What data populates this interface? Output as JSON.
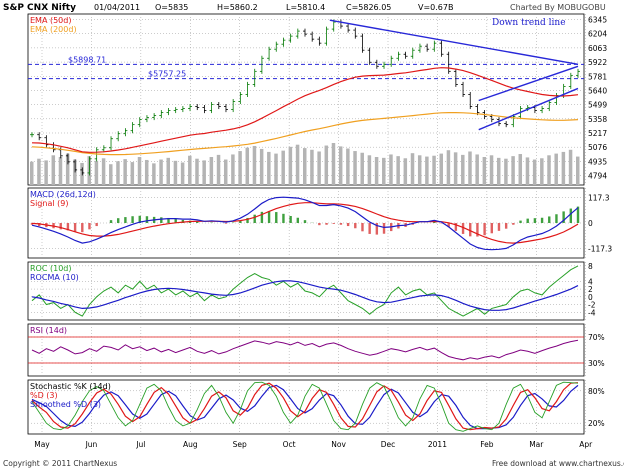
{
  "header": {
    "symbol": "S&P CNX Nifty",
    "date": "01/04/2011",
    "open": "O=5835",
    "high": "H=5860.2",
    "low": "L=5810.4",
    "close": "C=5826.05",
    "volume": "V=0.67B",
    "charted_by": "Charted By MOBUGOBU"
  },
  "footer": {
    "copyright": "Copyright © 2011 ChartNexus",
    "website": "Free download at www.chartnexus.com"
  },
  "colors": {
    "bg": "#ffffff",
    "frame": "#000000",
    "grid": "#999999",
    "candle_up": "#007800",
    "candle_down": "#000000",
    "ema50": "#e01818",
    "ema200": "#f0a020",
    "trend": "#2828d8",
    "volume": "#b4b4b4",
    "macd": "#1c1cc8",
    "signal": "#e01818",
    "macd_hist_up": "#3fa03f",
    "macd_hist_down": "#e06060",
    "roc": "#28a028",
    "rocma": "#1c1cc8",
    "rsi": "#800080",
    "stoch_k": "#28a028",
    "stoch_d": "#e01818",
    "stoch_sd": "#1c1cc8",
    "rsi_ref": "#e01818"
  },
  "chart_data": [
    {
      "type": "candlestick",
      "panel": "price",
      "title": "S&P CNX Nifty",
      "legend": [
        "EMA (50d)",
        "EMA (200d)"
      ],
      "ylim": [
        4700,
        6400
      ],
      "ticks": [
        6345,
        6204,
        6063,
        5922,
        5781,
        5640,
        5499,
        5358,
        5217,
        5076,
        4935,
        4794
      ],
      "h_lines": [
        {
          "label": "$5898.71",
          "value": 5898.71
        },
        {
          "label": "$5757.25",
          "value": 5757.25
        }
      ],
      "annotation": "Down trend line",
      "trend_lines": [
        {
          "name": "Down trend line",
          "from": [
            "Nov",
            6338
          ],
          "to": [
            "Apr",
            5900
          ]
        },
        {
          "name": "upper channel",
          "from": [
            "Feb",
            5540
          ],
          "to": [
            "Apr",
            5880
          ]
        },
        {
          "name": "lower channel",
          "from": [
            "Feb",
            5250
          ],
          "to": [
            "Apr",
            5660
          ]
        }
      ],
      "closes": [
        5200,
        5170,
        5100,
        5050,
        4990,
        4930,
        4850,
        4820,
        4960,
        5050,
        5070,
        5160,
        5210,
        5240,
        5300,
        5350,
        5370,
        5390,
        5420,
        5440,
        5450,
        5460,
        5480,
        5470,
        5440,
        5500,
        5480,
        5450,
        5530,
        5600,
        5700,
        5830,
        5960,
        6050,
        6100,
        6140,
        6180,
        6230,
        6200,
        6150,
        6110,
        6250,
        6320,
        6280,
        6240,
        6180,
        6040,
        5920,
        5880,
        5900,
        5960,
        6000,
        5980,
        6040,
        6080,
        6050,
        6110,
        6000,
        5830,
        5700,
        5600,
        5480,
        5420,
        5380,
        5350,
        5310,
        5300,
        5380,
        5460,
        5470,
        5440,
        5460,
        5520,
        5590,
        5680,
        5790,
        5830
      ],
      "ema50": [
        5120,
        5118,
        5110,
        5100,
        5085,
        5070,
        5050,
        5030,
        5025,
        5026,
        5030,
        5038,
        5048,
        5060,
        5075,
        5090,
        5105,
        5120,
        5135,
        5150,
        5165,
        5180,
        5195,
        5205,
        5212,
        5225,
        5235,
        5245,
        5258,
        5275,
        5298,
        5328,
        5364,
        5402,
        5440,
        5478,
        5515,
        5554,
        5588,
        5616,
        5640,
        5668,
        5700,
        5728,
        5752,
        5772,
        5783,
        5788,
        5790,
        5793,
        5800,
        5808,
        5815,
        5826,
        5838,
        5848,
        5860,
        5866,
        5863,
        5852,
        5837,
        5816,
        5792,
        5766,
        5740,
        5712,
        5685,
        5662,
        5645,
        5630,
        5614,
        5600,
        5591,
        5586,
        5585,
        5590,
        5598
      ],
      "ema200": [
        5080,
        5076,
        5070,
        5063,
        5055,
        5045,
        5034,
        5022,
        5014,
        5008,
        5004,
        5002,
        5002,
        5003,
        5006,
        5010,
        5015,
        5020,
        5026,
        5032,
        5039,
        5046,
        5053,
        5059,
        5064,
        5070,
        5076,
        5081,
        5088,
        5096,
        5105,
        5117,
        5131,
        5147,
        5163,
        5180,
        5197,
        5215,
        5232,
        5247,
        5260,
        5275,
        5291,
        5306,
        5320,
        5332,
        5342,
        5350,
        5356,
        5362,
        5369,
        5376,
        5383,
        5390,
        5398,
        5405,
        5413,
        5418,
        5420,
        5420,
        5418,
        5414,
        5408,
        5401,
        5393,
        5384,
        5375,
        5368,
        5362,
        5357,
        5352,
        5348,
        5345,
        5343,
        5343,
        5346,
        5350
      ],
      "volume": [
        0.55,
        0.62,
        0.58,
        0.7,
        0.66,
        0.74,
        0.6,
        0.52,
        0.68,
        0.57,
        0.63,
        0.49,
        0.56,
        0.61,
        0.54,
        0.66,
        0.59,
        0.51,
        0.6,
        0.64,
        0.57,
        0.53,
        0.69,
        0.62,
        0.58,
        0.66,
        0.71,
        0.6,
        0.72,
        0.8,
        0.88,
        0.92,
        0.85,
        0.78,
        0.74,
        0.81,
        0.9,
        0.95,
        0.87,
        0.83,
        0.79,
        0.93,
        0.99,
        0.91,
        0.86,
        0.8,
        0.76,
        0.7,
        0.66,
        0.64,
        0.72,
        0.68,
        0.63,
        0.75,
        0.7,
        0.67,
        0.69,
        0.74,
        0.82,
        0.77,
        0.71,
        0.79,
        0.72,
        0.66,
        0.7,
        0.64,
        0.62,
        0.68,
        0.73,
        0.65,
        0.6,
        0.63,
        0.7,
        0.74,
        0.78,
        0.83,
        0.67
      ]
    },
    {
      "type": "line",
      "panel": "macd",
      "legend": [
        "MACD (26d,12d)",
        "Signal (9)"
      ],
      "ylim": [
        -160,
        160
      ],
      "ticks": [
        "117.3",
        "0",
        "-117.3"
      ],
      "tick_values": [
        117.3,
        0,
        -117.3
      ],
      "series": [
        {
          "name": "MACD (26d,12d)",
          "values": [
            -10,
            -18,
            -28,
            -38,
            -50,
            -64,
            -80,
            -92,
            -86,
            -74,
            -60,
            -44,
            -30,
            -18,
            -6,
            4,
            10,
            14,
            18,
            20,
            20,
            18,
            18,
            14,
            8,
            10,
            8,
            4,
            10,
            22,
            40,
            64,
            90,
            108,
            116,
            118,
            116,
            114,
            106,
            94,
            80,
            80,
            84,
            78,
            68,
            52,
            28,
            4,
            -12,
            -20,
            -18,
            -12,
            -10,
            -2,
            6,
            6,
            12,
            4,
            -18,
            -44,
            -70,
            -96,
            -112,
            -120,
            -122,
            -120,
            -116,
            -100,
            -78,
            -64,
            -56,
            -48,
            -34,
            -14,
            12,
            42,
            70
          ]
        },
        {
          "name": "Signal (9)",
          "values": [
            -2,
            -4,
            -9,
            -14,
            -21,
            -30,
            -40,
            -50,
            -57,
            -60,
            -60,
            -57,
            -52,
            -45,
            -37,
            -29,
            -21,
            -14,
            -8,
            -3,
            1,
            4,
            7,
            8,
            8,
            8,
            8,
            7,
            8,
            11,
            17,
            26,
            39,
            53,
            66,
            76,
            84,
            90,
            93,
            93,
            90,
            88,
            88,
            86,
            82,
            76,
            66,
            54,
            41,
            29,
            19,
            13,
            8,
            6,
            6,
            6,
            7,
            6,
            1,
            -8,
            -20,
            -35,
            -50,
            -64,
            -75,
            -84,
            -90,
            -92,
            -89,
            -84,
            -78,
            -72,
            -64,
            -54,
            -41,
            -24,
            -5
          ]
        }
      ]
    },
    {
      "type": "line",
      "panel": "roc",
      "legend": [
        "ROC (10d)",
        "ROCMA (10)"
      ],
      "ylim": [
        -6,
        9
      ],
      "ticks": [
        "8",
        "4",
        "2",
        "0",
        "-2",
        "-4"
      ],
      "tick_values": [
        8,
        4,
        2,
        0,
        -2,
        -4
      ],
      "series": [
        {
          "name": "ROC (10d)",
          "values": [
            -1,
            0.5,
            -2,
            -1.5,
            -3,
            -2,
            -4,
            -5,
            -2,
            0,
            1.5,
            2.5,
            1,
            3,
            2,
            4,
            2,
            3,
            1,
            2,
            0.5,
            1.5,
            0,
            1,
            -1,
            0.5,
            -0.5,
            0,
            2,
            3.5,
            5,
            6,
            5,
            4.5,
            3,
            4,
            2.5,
            3.5,
            1.5,
            1,
            0,
            2,
            3,
            1,
            -1,
            -2,
            -3,
            -4.5,
            -3,
            -2,
            1,
            2.5,
            0.5,
            1.5,
            2,
            0.5,
            1,
            -1,
            -3,
            -4,
            -5,
            -4,
            -3,
            -4.5,
            -3,
            -2.5,
            -2,
            0,
            1.5,
            2,
            1,
            0.5,
            2.5,
            4,
            5.5,
            7,
            8
          ]
        },
        {
          "name": "ROCMA (10)",
          "values": [
            0,
            -0.3,
            -0.8,
            -1.2,
            -1.7,
            -2.1,
            -2.6,
            -3.0,
            -2.9,
            -2.6,
            -2.1,
            -1.5,
            -0.9,
            -0.2,
            0.4,
            1.0,
            1.5,
            1.9,
            2.1,
            2.2,
            2.1,
            1.9,
            1.6,
            1.3,
            1.0,
            0.7,
            0.5,
            0.4,
            0.6,
            1.0,
            1.6,
            2.3,
            3.0,
            3.5,
            3.9,
            4.1,
            4.1,
            3.9,
            3.5,
            3.0,
            2.5,
            2.2,
            2.0,
            1.7,
            1.2,
            0.6,
            -0.1,
            -0.8,
            -1.3,
            -1.5,
            -1.4,
            -1.0,
            -0.6,
            -0.2,
            0.2,
            0.4,
            0.5,
            0.3,
            -0.2,
            -0.9,
            -1.7,
            -2.4,
            -2.9,
            -3.3,
            -3.5,
            -3.5,
            -3.3,
            -2.9,
            -2.3,
            -1.7,
            -1.1,
            -0.6,
            0.0,
            0.6,
            1.3,
            2.0,
            2.9
          ]
        }
      ]
    },
    {
      "type": "line",
      "panel": "rsi",
      "legend": [
        "RSI (14d)"
      ],
      "ylim": [
        10,
        90
      ],
      "ticks": [
        "70%",
        "30%"
      ],
      "tick_values": [
        70,
        30
      ],
      "series": [
        {
          "name": "RSI (14d)",
          "values": [
            50,
            45,
            52,
            48,
            55,
            50,
            44,
            46,
            52,
            48,
            56,
            54,
            50,
            58,
            52,
            55,
            49,
            53,
            47,
            51,
            46,
            50,
            54,
            48,
            45,
            49,
            44,
            47,
            52,
            56,
            60,
            64,
            62,
            59,
            63,
            61,
            58,
            62,
            57,
            60,
            55,
            59,
            61,
            57,
            52,
            48,
            45,
            42,
            44,
            48,
            52,
            50,
            47,
            51,
            54,
            50,
            53,
            46,
            40,
            37,
            35,
            38,
            36,
            39,
            41,
            38,
            43,
            46,
            50,
            48,
            45,
            49,
            53,
            56,
            60,
            63,
            65
          ]
        }
      ]
    },
    {
      "type": "line",
      "panel": "stochastic",
      "legend": [
        "Stochastic %K (14d)",
        "%D (3)",
        "Smoothed %D (3)"
      ],
      "ylim": [
        0,
        100
      ],
      "ticks": [
        "80%",
        "20%"
      ],
      "tick_values": [
        80,
        20
      ],
      "series": [
        {
          "name": "Stochastic %K (14d)",
          "values": [
            60,
            40,
            20,
            10,
            8,
            15,
            35,
            60,
            80,
            88,
            80,
            55,
            30,
            15,
            25,
            55,
            85,
            92,
            80,
            50,
            25,
            15,
            20,
            45,
            75,
            90,
            70,
            40,
            20,
            45,
            80,
            95,
            96,
            90,
            70,
            40,
            20,
            35,
            70,
            92,
            85,
            55,
            25,
            10,
            8,
            20,
            55,
            85,
            95,
            88,
            60,
            30,
            15,
            30,
            65,
            90,
            85,
            55,
            20,
            8,
            5,
            10,
            15,
            10,
            8,
            20,
            55,
            85,
            92,
            70,
            40,
            30,
            60,
            90,
            96,
            95,
            94
          ]
        },
        {
          "name": "%D (3)",
          "values": [
            62,
            50,
            40,
            23,
            13,
            11,
            19,
            37,
            58,
            76,
            83,
            74,
            55,
            33,
            23,
            32,
            55,
            77,
            86,
            74,
            52,
            30,
            20,
            27,
            47,
            70,
            78,
            67,
            43,
            35,
            48,
            73,
            90,
            94,
            85,
            67,
            43,
            32,
            42,
            66,
            82,
            77,
            55,
            30,
            14,
            13,
            28,
            53,
            78,
            89,
            81,
            59,
            35,
            25,
            37,
            62,
            80,
            77,
            53,
            28,
            11,
            8,
            10,
            12,
            11,
            13,
            28,
            53,
            77,
            82,
            67,
            47,
            43,
            60,
            82,
            94,
            95
          ]
        },
        {
          "name": "Smoothed %D (3)",
          "values": [
            64,
            58,
            51,
            38,
            25,
            16,
            14,
            22,
            38,
            57,
            72,
            78,
            71,
            54,
            37,
            29,
            37,
            55,
            73,
            79,
            71,
            52,
            34,
            26,
            31,
            48,
            65,
            72,
            63,
            48,
            42,
            52,
            70,
            86,
            90,
            82,
            65,
            47,
            39,
            47,
            63,
            75,
            71,
            54,
            33,
            19,
            18,
            31,
            53,
            73,
            83,
            76,
            58,
            40,
            32,
            41,
            60,
            73,
            70,
            53,
            31,
            16,
            10,
            10,
            11,
            12,
            17,
            31,
            53,
            71,
            75,
            65,
            52,
            50,
            62,
            79,
            90
          ]
        }
      ]
    }
  ],
  "x_axis": {
    "labels": [
      "May",
      "Jun",
      "Jul",
      "Aug",
      "Sep",
      "Oct",
      "Nov",
      "Dec",
      "2011",
      "Feb",
      "Mar",
      "Apr"
    ],
    "start_label": "May",
    "end_label": "Apr"
  }
}
